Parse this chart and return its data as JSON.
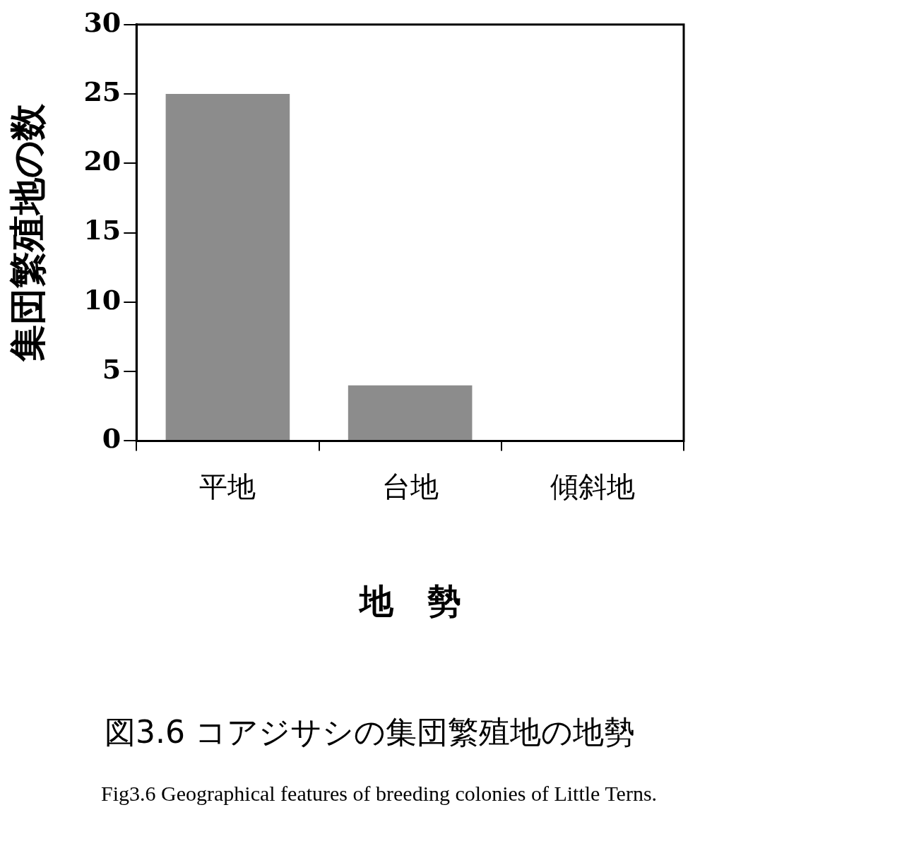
{
  "chart_data": {
    "type": "bar",
    "title": "図3.6 コアジサシの集団繁殖地の地勢",
    "subtitle": "Fig3.6  Geographical features of breeding colonies of Little Terns.",
    "xlabel": "地　勢",
    "ylabel": "集団繁殖地の数",
    "categories": [
      "平地",
      "台地",
      "傾斜地"
    ],
    "values": [
      25,
      4,
      0
    ],
    "color": "#8c8c8c",
    "ylim": [
      0,
      30
    ],
    "yticks": [
      0,
      5,
      10,
      15,
      20,
      25,
      30
    ],
    "grid": false,
    "legend": false
  }
}
